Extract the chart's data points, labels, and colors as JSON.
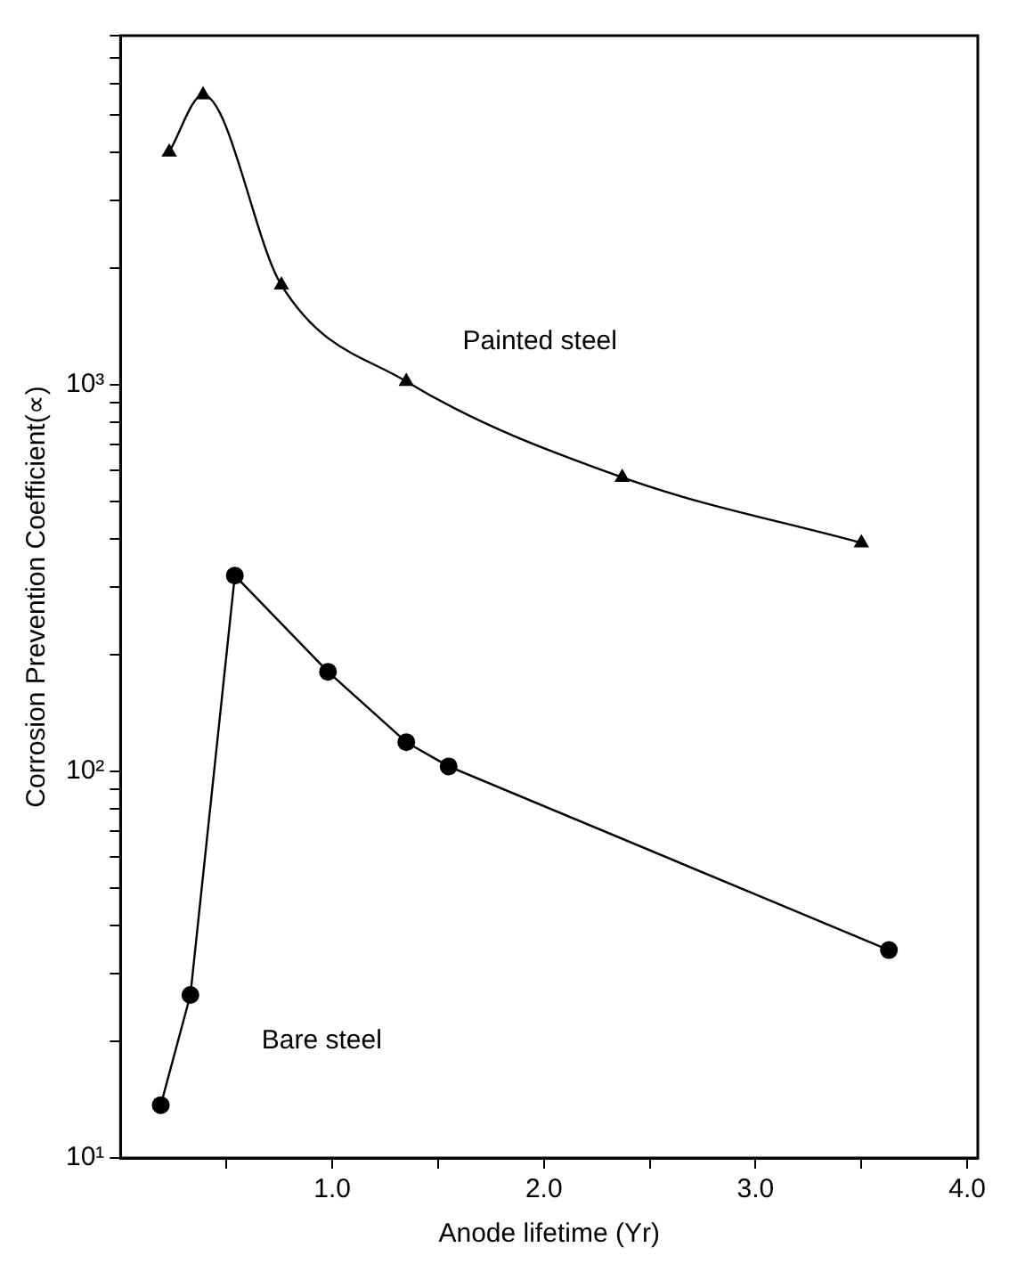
{
  "chart_data": {
    "type": "line",
    "xlabel": "Anode lifetime (Yr)",
    "ylabel": "Corrosion Prevention Coefficient(∝)",
    "log": "y",
    "grid": false,
    "legend": false,
    "xlim": [
      0,
      4.05
    ],
    "xticks": [
      {
        "value": 0.5,
        "label": null
      },
      {
        "value": 1,
        "label": "1.0"
      },
      {
        "value": 1.5,
        "label": null
      },
      {
        "value": 2,
        "label": "2.0"
      },
      {
        "value": 2.5,
        "label": null
      },
      {
        "value": 3,
        "label": "3.0"
      },
      {
        "value": 3.5,
        "label": null
      },
      {
        "value": 4,
        "label": "4.0"
      }
    ],
    "ylim": [
      10,
      8000
    ],
    "yticks": [
      {
        "value": 10,
        "label": "10¹"
      },
      {
        "value": 20,
        "label": null
      },
      {
        "value": 30,
        "label": null
      },
      {
        "value": 40,
        "label": null
      },
      {
        "value": 50,
        "label": null
      },
      {
        "value": 60,
        "label": null
      },
      {
        "value": 70,
        "label": null
      },
      {
        "value": 80,
        "label": null
      },
      {
        "value": 90,
        "label": null
      },
      {
        "value": 100,
        "label": "10²"
      },
      {
        "value": 200,
        "label": null
      },
      {
        "value": 300,
        "label": null
      },
      {
        "value": 400,
        "label": null
      },
      {
        "value": 500,
        "label": null
      },
      {
        "value": 600,
        "label": null
      },
      {
        "value": 700,
        "label": null
      },
      {
        "value": 800,
        "label": null
      },
      {
        "value": 900,
        "label": null
      },
      {
        "value": 1000,
        "label": "10³"
      },
      {
        "value": 2000,
        "label": null
      },
      {
        "value": 3000,
        "label": null
      },
      {
        "value": 4000,
        "label": null
      },
      {
        "value": 5000,
        "label": null
      },
      {
        "value": 6000,
        "label": null
      },
      {
        "value": 7000,
        "label": null
      },
      {
        "value": 8000,
        "label": null
      }
    ],
    "series": [
      {
        "name": "Painted steel",
        "color": "#000000",
        "marker": "triangle",
        "x": [
          0.23,
          0.39,
          0.76,
          1.35,
          2.37,
          3.5
        ],
        "values": [
          4000,
          5620,
          1810,
          1020,
          576,
          390
        ]
      },
      {
        "name": "Bare steel",
        "color": "#000000",
        "marker": "circle",
        "x": [
          0.19,
          0.33,
          0.54,
          0.98,
          1.35,
          1.55,
          3.63
        ],
        "values": [
          13.7,
          26.4,
          321,
          181,
          119,
          103,
          34.5
        ]
      }
    ]
  }
}
